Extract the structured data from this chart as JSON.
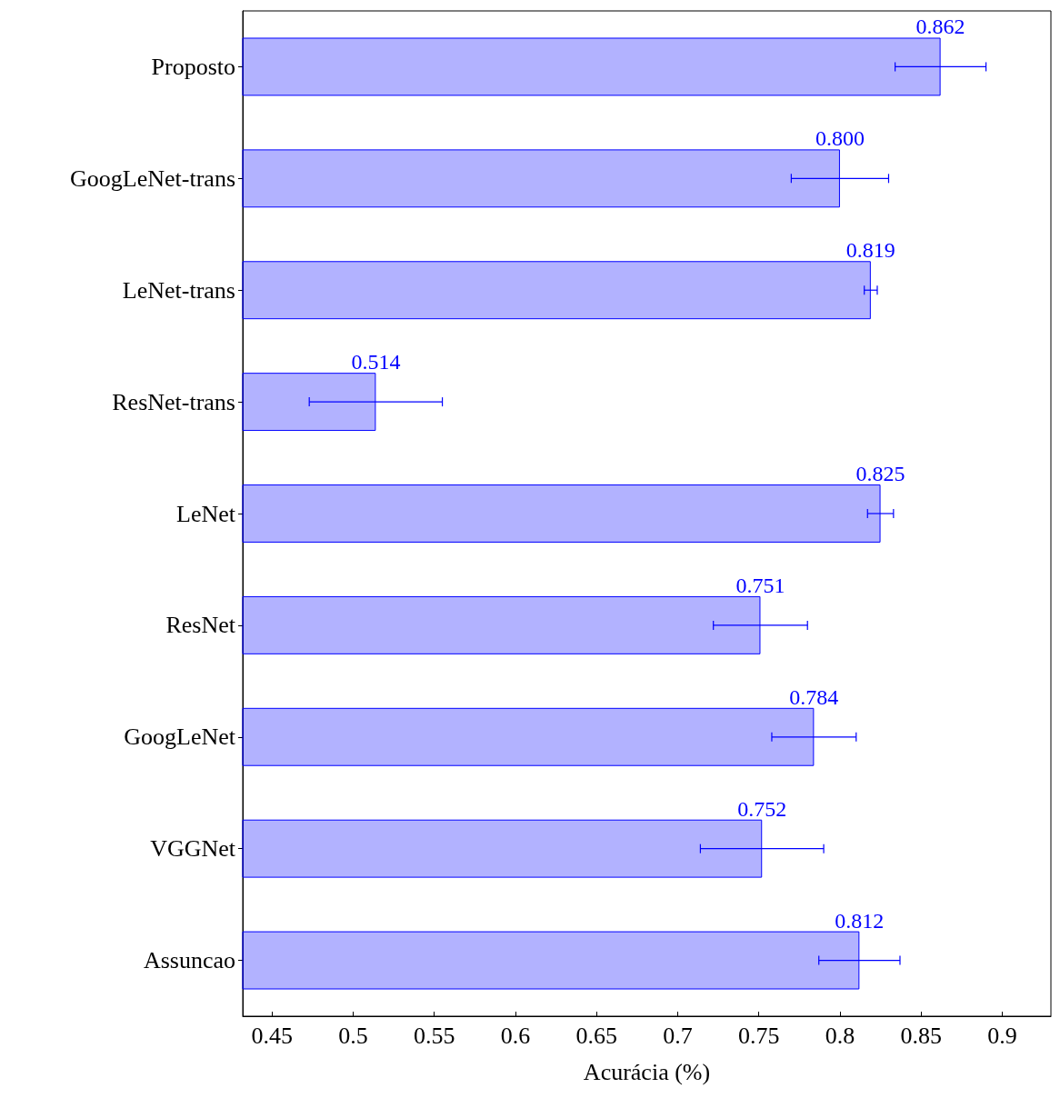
{
  "chart_data": {
    "type": "bar",
    "orientation": "horizontal",
    "xlabel": "Acurácia (%)",
    "categories": [
      "Proposto",
      "GoogLeNet-trans",
      "LeNet-trans",
      "ResNet-trans",
      "LeNet",
      "ResNet",
      "GoogLeNet",
      "VGGNet",
      "Assuncao"
    ],
    "values": [
      0.862,
      0.8,
      0.819,
      0.514,
      0.825,
      0.751,
      0.784,
      0.752,
      0.812
    ],
    "value_labels": [
      "0.862",
      "0.800",
      "0.819",
      "0.514",
      "0.825",
      "0.751",
      "0.784",
      "0.752",
      "0.812"
    ],
    "errors": [
      0.028,
      0.03,
      0.004,
      0.041,
      0.008,
      0.029,
      0.026,
      0.038,
      0.025
    ],
    "color": "#0000ff",
    "xlim": [
      0.432,
      0.93
    ],
    "xticks": [
      0.45,
      0.5,
      0.55,
      0.6,
      0.65,
      0.7,
      0.75,
      0.8,
      0.85,
      0.9
    ],
    "grid": false
  }
}
